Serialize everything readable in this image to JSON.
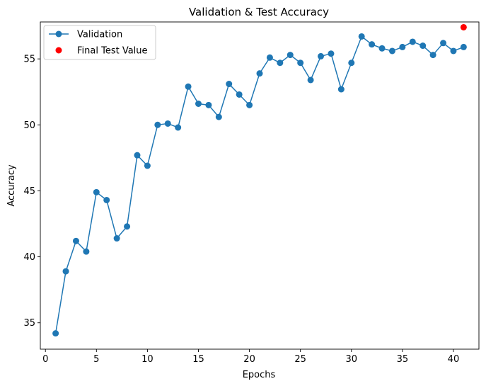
{
  "chart_data": {
    "type": "line",
    "title": "Validation & Test Accuracy",
    "xlabel": "Epochs",
    "ylabel": "Accuracy",
    "xlim": [
      -0.5,
      42.5
    ],
    "ylim": [
      33.0,
      57.8
    ],
    "xticks": [
      0,
      5,
      10,
      15,
      20,
      25,
      30,
      35,
      40
    ],
    "yticks": [
      35,
      40,
      45,
      50,
      55
    ],
    "grid": false,
    "legend_position": "top-left",
    "series": [
      {
        "name": "Validation",
        "color": "#1f77b4",
        "marker": "circle",
        "x": [
          1,
          2,
          3,
          4,
          5,
          6,
          7,
          8,
          9,
          10,
          11,
          12,
          13,
          14,
          15,
          16,
          17,
          18,
          19,
          20,
          21,
          22,
          23,
          24,
          25,
          26,
          27,
          28,
          29,
          30,
          31,
          32,
          33,
          34,
          35,
          36,
          37,
          38,
          39,
          40,
          41
        ],
        "y": [
          34.2,
          38.9,
          41.2,
          40.4,
          44.9,
          44.3,
          41.4,
          42.3,
          47.7,
          46.9,
          50.0,
          50.1,
          49.8,
          52.9,
          51.6,
          51.5,
          50.6,
          53.1,
          52.3,
          51.5,
          53.9,
          55.1,
          54.7,
          55.3,
          54.7,
          53.4,
          55.2,
          55.4,
          52.7,
          54.7,
          56.7,
          56.1,
          55.8,
          55.6,
          55.9,
          56.3,
          56.0,
          55.3,
          56.2,
          55.6,
          55.9
        ]
      },
      {
        "name": "Final Test Value",
        "color": "#ff0000",
        "marker": "circle",
        "type": "scatter",
        "x": [
          41
        ],
        "y": [
          57.4
        ]
      }
    ]
  }
}
